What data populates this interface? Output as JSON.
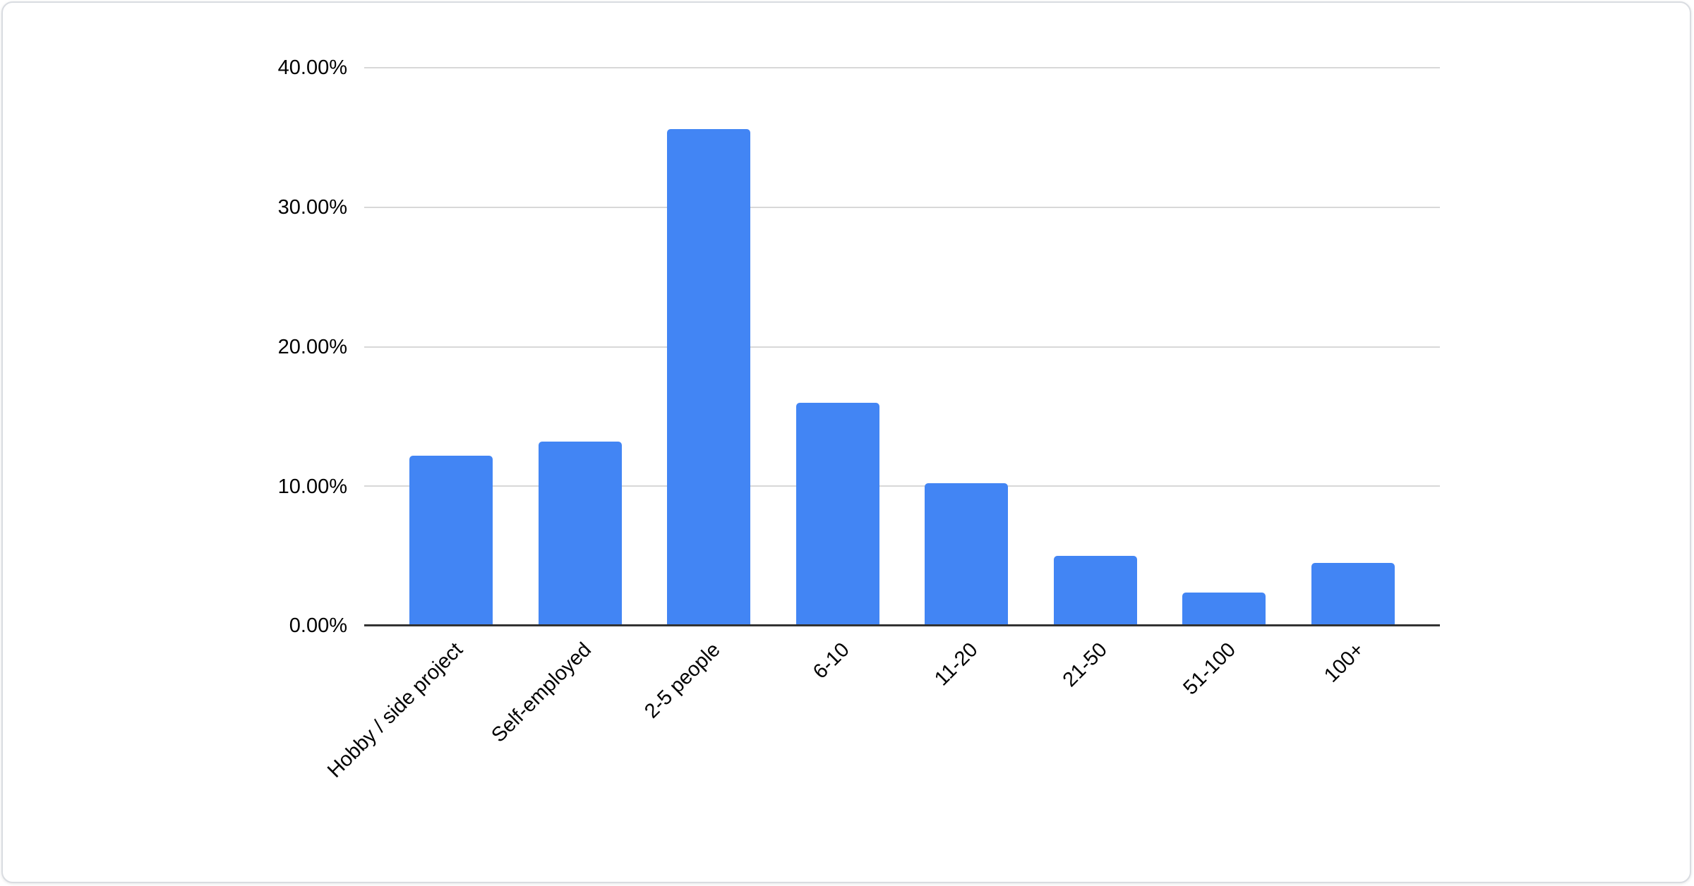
{
  "chart_data": {
    "type": "bar",
    "title": "",
    "xlabel": "",
    "ylabel": "",
    "categories": [
      "Hobby / side project",
      "Self-employed",
      "2-5 people",
      "6-10",
      "11-20",
      "21-50",
      "51-100",
      "100+"
    ],
    "values": [
      12.2,
      13.2,
      35.6,
      16.0,
      10.2,
      5.0,
      2.4,
      4.5
    ],
    "ylim": [
      0,
      40
    ],
    "ytick_labels": [
      "40.00%",
      "30.00%",
      "20.00%",
      "10.00%",
      "0.00%"
    ],
    "grid": true,
    "legend": false,
    "x_label_rotation_deg": -45,
    "bar_color": "#4285f4",
    "gridline_color": "#d8d8d8",
    "axis_line_color": "#333333",
    "text_color": "#000000",
    "card_background": "#ffffff",
    "card_border_color": "#d9dce1"
  }
}
